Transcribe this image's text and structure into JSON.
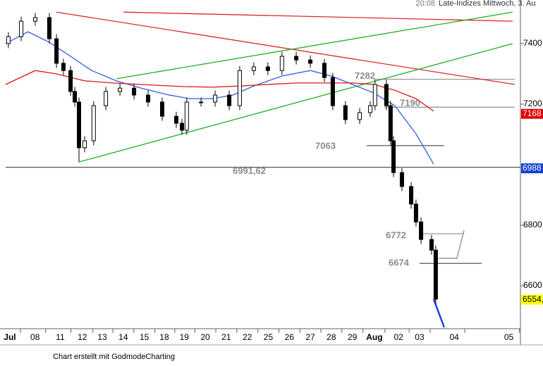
{
  "chart_data": {
    "type": "candlestick",
    "subtitle": "20:08",
    "title": "Late-Indizes Mittwoch, 3. Au",
    "footer": "Chart erstellt mit GodmodeCharting",
    "candle_color": "#000000",
    "x": [
      0.13,
      0.74,
      1.41,
      2.08,
      2.42,
      2.75,
      3.09,
      3.29,
      3.49,
      3.76,
      4.19,
      4.77,
      5.44,
      6.11,
      6.78,
      7.45,
      8.12,
      8.39,
      8.62,
      9.3,
      9.97,
      10.64,
      11.14,
      11.81,
      12.48,
      13.15,
      13.83,
      14.5,
      15.17,
      15.57,
      16.17,
      16.85,
      17.35,
      17.58,
      18.12,
      18.32,
      18.46,
      18.86,
      19.3,
      19.53,
      19.77,
      20.27,
      20.47
    ],
    "open": [
      7400,
      7423,
      7474,
      7486,
      7416,
      7335,
      7311,
      7242,
      7207,
      7056,
      7079,
      7195,
      7242,
      7253,
      7230,
      7207,
      7160,
      7137,
      7114,
      7207,
      7207,
      7230,
      7195,
      7311,
      7323,
      7311,
      7358,
      7346,
      7335,
      7288,
      7195,
      7149,
      7172,
      7195,
      7265,
      7195,
      7079,
      6974,
      6928,
      6870,
      6811,
      6753,
      6718
    ],
    "high": [
      7438,
      7489,
      7501,
      7501,
      7431,
      7350,
      7326,
      7257,
      7222,
      7094,
      7210,
      7257,
      7268,
      7268,
      7245,
      7222,
      7175,
      7152,
      7222,
      7222,
      7245,
      7245,
      7326,
      7338,
      7338,
      7373,
      7373,
      7361,
      7350,
      7303,
      7210,
      7187,
      7210,
      7280,
      7280,
      7210,
      7094,
      6989,
      6943,
      6885,
      6826,
      6768,
      6733
    ],
    "low": [
      7385,
      7408,
      7459,
      7401,
      7320,
      7296,
      7227,
      7192,
      7009,
      7041,
      7064,
      7180,
      7227,
      7215,
      7192,
      7145,
      7122,
      7099,
      7099,
      7192,
      7192,
      7180,
      7180,
      7296,
      7296,
      7296,
      7331,
      7320,
      7273,
      7180,
      7134,
      7134,
      7157,
      7180,
      7180,
      7064,
      6959,
      6913,
      6855,
      6796,
      6738,
      6703,
      6541
    ],
    "close": [
      7423,
      7474,
      7486,
      7416,
      7335,
      7311,
      7242,
      7207,
      7056,
      7079,
      7195,
      7242,
      7253,
      7230,
      7207,
      7160,
      7137,
      7114,
      7207,
      7207,
      7230,
      7195,
      7311,
      7323,
      7311,
      7358,
      7346,
      7335,
      7288,
      7195,
      7149,
      7172,
      7195,
      7265,
      7195,
      7079,
      6974,
      6928,
      6870,
      6811,
      6753,
      6718,
      6556
    ],
    "xlim": [
      0,
      24.5
    ],
    "xticks": [
      {
        "value": 0.2,
        "label": "Jul"
      },
      {
        "value": 1.4,
        "label": "08"
      },
      {
        "value": 2.6,
        "label": "11"
      },
      {
        "value": 3.65,
        "label": "12"
      },
      {
        "value": 4.6,
        "label": "13"
      },
      {
        "value": 5.6,
        "label": "14"
      },
      {
        "value": 6.6,
        "label": "15"
      },
      {
        "value": 7.55,
        "label": "18"
      },
      {
        "value": 8.5,
        "label": "19"
      },
      {
        "value": 9.5,
        "label": "20"
      },
      {
        "value": 10.5,
        "label": "21"
      },
      {
        "value": 11.5,
        "label": "22"
      },
      {
        "value": 12.5,
        "label": "25"
      },
      {
        "value": 13.5,
        "label": "26"
      },
      {
        "value": 14.5,
        "label": "27"
      },
      {
        "value": 15.5,
        "label": "28"
      },
      {
        "value": 16.5,
        "label": "29"
      },
      {
        "value": 17.55,
        "label": "Aug"
      },
      {
        "value": 18.7,
        "label": "02"
      },
      {
        "value": 19.7,
        "label": "03"
      },
      {
        "value": 21.35,
        "label": "04"
      },
      {
        "value": 23.95,
        "label": "05"
      }
    ],
    "ylim": [
      6463,
      7544
    ],
    "yticks": [
      6600,
      6800,
      7200,
      7400
    ],
    "lines": [
      {
        "color": "#e02828",
        "x": [
          5.6,
          24.13
        ],
        "values": [
          7504,
          7474
        ]
      },
      {
        "color": "#e02828",
        "x": [
          2.42,
          24.23
        ],
        "values": [
          7504,
          7265
        ]
      },
      {
        "color": "#22b022",
        "x": [
          5.27,
          24.13
        ],
        "values": [
          7284,
          7504
        ]
      },
      {
        "color": "#22b022",
        "x": [
          3.49,
          24.13
        ],
        "values": [
          7009,
          7400
        ]
      },
      {
        "color": "#3060e0",
        "x": [
          0,
          1.07,
          2.08,
          3.09,
          4.09,
          5.27,
          6.44,
          7.79,
          8.79,
          9.8,
          10.81,
          11.81,
          13.15,
          14.5,
          15.5,
          16.51,
          17.52,
          18.52,
          19.53,
          20.37
        ],
        "values": [
          7400,
          7439,
          7404,
          7358,
          7311,
          7277,
          7253,
          7230,
          7218,
          7218,
          7230,
          7260,
          7293,
          7311,
          7293,
          7265,
          7237,
          7195,
          7102,
          7002
        ]
      },
      {
        "color": "#d81818",
        "x": [
          0,
          1.41,
          2.42,
          3.76,
          5.1,
          6.44,
          8.46,
          9.8,
          11.14,
          12.48,
          13.83,
          15.17,
          16.51,
          17.52,
          18.52,
          19.53,
          20.37
        ],
        "values": [
          7265,
          7311,
          7300,
          7277,
          7270,
          7265,
          7258,
          7256,
          7260,
          7265,
          7270,
          7270,
          7270,
          7265,
          7246,
          7218,
          7177
        ]
      },
      {
        "color": "#2040e0",
        "x": [
          20.37,
          20.87
        ],
        "values": [
          6556,
          6463
        ]
      }
    ],
    "levels": [
      {
        "value": 7282,
        "label": "7282",
        "x": [
          17.52,
          24.23
        ],
        "color": "#8c8c8c"
      },
      {
        "value": 7190,
        "label": "7190",
        "x": [
          18.02,
          24.23
        ],
        "color": "#8c8c8c"
      },
      {
        "value": 7063,
        "label": "7063",
        "x": [
          17.18,
          20.87
        ],
        "color": "#555555"
      },
      {
        "value": 6991.62,
        "label": "6991,62",
        "x": [
          0,
          24.5
        ],
        "color": "#555555"
      },
      {
        "value": 6772,
        "label": "6772",
        "x": [
          19.7,
          21.81
        ],
        "color": "#8c8c8c"
      },
      {
        "value": 6674,
        "label": "6674",
        "x": [
          19.7,
          22.65
        ],
        "color": "#555555"
      }
    ],
    "price_labels": [
      {
        "value": 7168,
        "label": "7168",
        "color": "#e00000",
        "text_color": "#ffffff"
      },
      {
        "value": 6988,
        "label": "6988",
        "color": "#1040d0",
        "text_color": "#ffffff"
      },
      {
        "value": 6554,
        "label": "6554,",
        "color": "#ffff00",
        "text_color": "#000000"
      }
    ]
  }
}
